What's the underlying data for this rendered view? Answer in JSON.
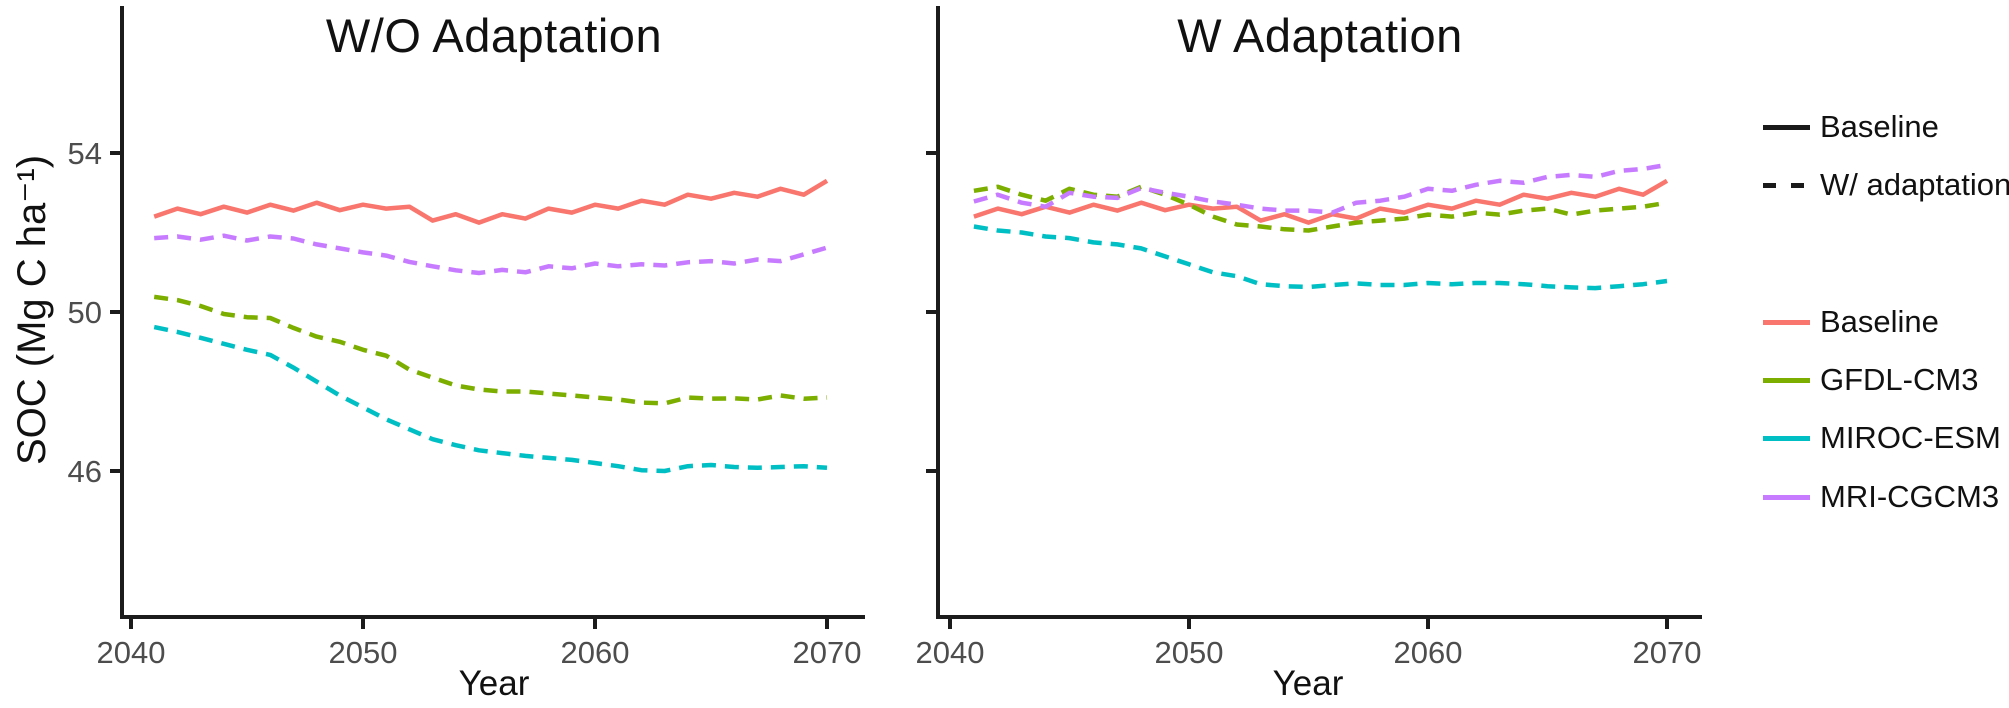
{
  "figure": {
    "y_axis": {
      "label": "SOC (Mg C ha⁻¹)"
    },
    "x_axis": {
      "label": "Year"
    }
  },
  "legend": {
    "linetype": [
      {
        "label": "Baseline",
        "style": "solid"
      },
      {
        "label": "W/ adaptation",
        "style": "dashed"
      }
    ],
    "colors": [
      {
        "label": "Baseline",
        "color": "#F8766D"
      },
      {
        "label": "GFDL-CM3",
        "color": "#7CAE00"
      },
      {
        "label": "MIROC-ESM",
        "color": "#00BFC4"
      },
      {
        "label": "MRI-CGCM3",
        "color": "#C77CFF"
      }
    ]
  },
  "chart_data": [
    {
      "type": "line",
      "title": "W/O Adaptation",
      "xlabel": "Year",
      "ylabel": "SOC (Mg C ha⁻¹)",
      "xlim": [
        2039.6,
        2071.6
      ],
      "ylim": [
        42.3,
        57.7
      ],
      "x_ticks": [
        2040,
        2050,
        2060,
        2070
      ],
      "y_ticks": [
        46,
        50,
        54
      ],
      "grid": false,
      "x": [
        2041,
        2042,
        2043,
        2044,
        2045,
        2046,
        2047,
        2048,
        2049,
        2050,
        2051,
        2052,
        2053,
        2054,
        2055,
        2056,
        2057,
        2058,
        2059,
        2060,
        2061,
        2062,
        2063,
        2064,
        2065,
        2066,
        2067,
        2068,
        2069,
        2070
      ],
      "series": [
        {
          "name": "Baseline",
          "color": "#F8766D",
          "dash": "solid",
          "values": [
            52.4,
            52.6,
            52.46,
            52.65,
            52.5,
            52.7,
            52.55,
            52.75,
            52.56,
            52.7,
            52.6,
            52.65,
            52.3,
            52.46,
            52.25,
            52.46,
            52.35,
            52.6,
            52.5,
            52.7,
            52.6,
            52.8,
            52.7,
            52.95,
            52.85,
            53.0,
            52.9,
            53.1,
            52.95,
            53.3
          ]
        },
        {
          "name": "GFDL-CM3",
          "color": "#7CAE00",
          "dash": "dashed",
          "values": [
            50.38,
            50.3,
            50.15,
            49.95,
            49.87,
            49.85,
            49.6,
            49.38,
            49.25,
            49.05,
            48.9,
            48.55,
            48.35,
            48.15,
            48.05,
            48.0,
            48.0,
            47.95,
            47.9,
            47.85,
            47.8,
            47.72,
            47.7,
            47.85,
            47.82,
            47.83,
            47.8,
            47.9,
            47.82,
            47.85
          ]
        },
        {
          "name": "MIROC-ESM",
          "color": "#00BFC4",
          "dash": "dashed",
          "values": [
            49.62,
            49.5,
            49.35,
            49.2,
            49.05,
            48.92,
            48.6,
            48.25,
            47.9,
            47.6,
            47.3,
            47.05,
            46.8,
            46.65,
            46.52,
            46.45,
            46.38,
            46.33,
            46.28,
            46.2,
            46.12,
            46.02,
            46.0,
            46.12,
            46.15,
            46.1,
            46.08,
            46.1,
            46.12,
            46.08
          ]
        },
        {
          "name": "MRI-CGCM3",
          "color": "#C77CFF",
          "dash": "dashed",
          "values": [
            51.86,
            51.9,
            51.82,
            51.92,
            51.8,
            51.9,
            51.85,
            51.7,
            51.6,
            51.5,
            51.42,
            51.26,
            51.15,
            51.05,
            50.98,
            51.06,
            51.0,
            51.15,
            51.1,
            51.22,
            51.15,
            51.2,
            51.17,
            51.25,
            51.28,
            51.22,
            51.32,
            51.28,
            51.45,
            51.62
          ]
        }
      ]
    },
    {
      "type": "line",
      "title": "W Adaptation",
      "xlabel": "Year",
      "ylabel": "SOC (Mg C ha⁻¹)",
      "xlim": [
        2039.5,
        2071.5
      ],
      "ylim": [
        42.3,
        57.7
      ],
      "x_ticks": [
        2040,
        2050,
        2060,
        2070
      ],
      "y_ticks": [
        46,
        50,
        54
      ],
      "grid": false,
      "x": [
        2041,
        2042,
        2043,
        2044,
        2045,
        2046,
        2047,
        2048,
        2049,
        2050,
        2051,
        2052,
        2053,
        2054,
        2055,
        2056,
        2057,
        2058,
        2059,
        2060,
        2061,
        2062,
        2063,
        2064,
        2065,
        2066,
        2067,
        2068,
        2069,
        2070
      ],
      "series": [
        {
          "name": "Baseline",
          "color": "#F8766D",
          "dash": "solid",
          "values": [
            52.4,
            52.6,
            52.46,
            52.65,
            52.5,
            52.7,
            52.55,
            52.75,
            52.56,
            52.7,
            52.6,
            52.65,
            52.3,
            52.46,
            52.25,
            52.46,
            52.35,
            52.6,
            52.5,
            52.7,
            52.6,
            52.8,
            52.7,
            52.95,
            52.85,
            53.0,
            52.9,
            53.1,
            52.95,
            53.3
          ]
        },
        {
          "name": "GFDL-CM3",
          "color": "#7CAE00",
          "dash": "dashed",
          "values": [
            53.05,
            53.15,
            52.95,
            52.8,
            53.1,
            52.95,
            52.9,
            53.15,
            52.95,
            52.7,
            52.4,
            52.2,
            52.15,
            52.08,
            52.05,
            52.15,
            52.25,
            52.3,
            52.35,
            52.45,
            52.4,
            52.5,
            52.45,
            52.55,
            52.6,
            52.45,
            52.55,
            52.6,
            52.65,
            52.75
          ]
        },
        {
          "name": "MIROC-ESM",
          "color": "#00BFC4",
          "dash": "dashed",
          "values": [
            52.15,
            52.05,
            52.0,
            51.9,
            51.86,
            51.75,
            51.7,
            51.6,
            51.4,
            51.2,
            51.0,
            50.9,
            50.7,
            50.65,
            50.63,
            50.68,
            50.72,
            50.68,
            50.68,
            50.73,
            50.7,
            50.73,
            50.73,
            50.7,
            50.65,
            50.62,
            50.6,
            50.65,
            50.7,
            50.78
          ]
        },
        {
          "name": "MRI-CGCM3",
          "color": "#C77CFF",
          "dash": "dashed",
          "values": [
            52.78,
            52.95,
            52.75,
            52.65,
            53.0,
            52.9,
            52.87,
            53.12,
            53.0,
            52.9,
            52.78,
            52.7,
            52.6,
            52.55,
            52.55,
            52.5,
            52.75,
            52.8,
            52.9,
            53.1,
            53.05,
            53.2,
            53.3,
            53.25,
            53.4,
            53.45,
            53.4,
            53.55,
            53.6,
            53.7
          ]
        }
      ]
    }
  ]
}
